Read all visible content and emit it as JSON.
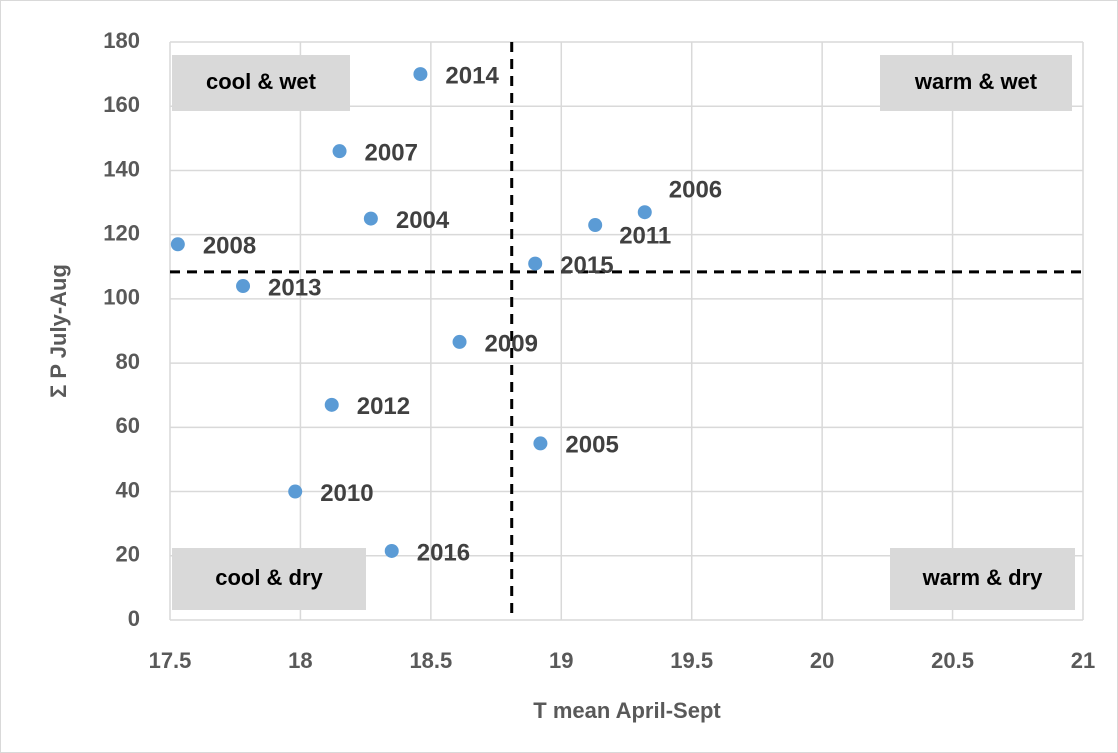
{
  "chart_data": {
    "type": "scatter",
    "x_label": "T mean April-Sept",
    "y_label": "Σ P July-Aug",
    "x": [
      18.46,
      18.15,
      18.27,
      17.53,
      17.78,
      18.61,
      18.12,
      18.92,
      17.98,
      18.35,
      18.9,
      19.13,
      19.32
    ],
    "values": [
      170,
      146,
      125,
      117,
      104,
      86.6,
      67,
      55,
      40,
      21.5,
      111,
      123,
      127
    ],
    "point_labels": [
      "2014",
      "2007",
      "2004",
      "2008",
      "2013",
      "2009",
      "2012",
      "2005",
      "2010",
      "2016",
      "2015",
      "2011",
      "2006"
    ],
    "color": "#5b9bd5",
    "xlim": [
      17.5,
      21
    ],
    "xticks": [
      17.5,
      18,
      18.5,
      19,
      19.5,
      20,
      20.5,
      21
    ],
    "ylim": [
      0,
      180
    ],
    "yticks": [
      0,
      20,
      40,
      60,
      80,
      100,
      120,
      140,
      160,
      180
    ],
    "grid": true,
    "vline": 18.81,
    "hline": 108.4,
    "annotations": [
      "cool & wet",
      "warm & wet",
      "cool & dry",
      "warm & dry"
    ]
  }
}
